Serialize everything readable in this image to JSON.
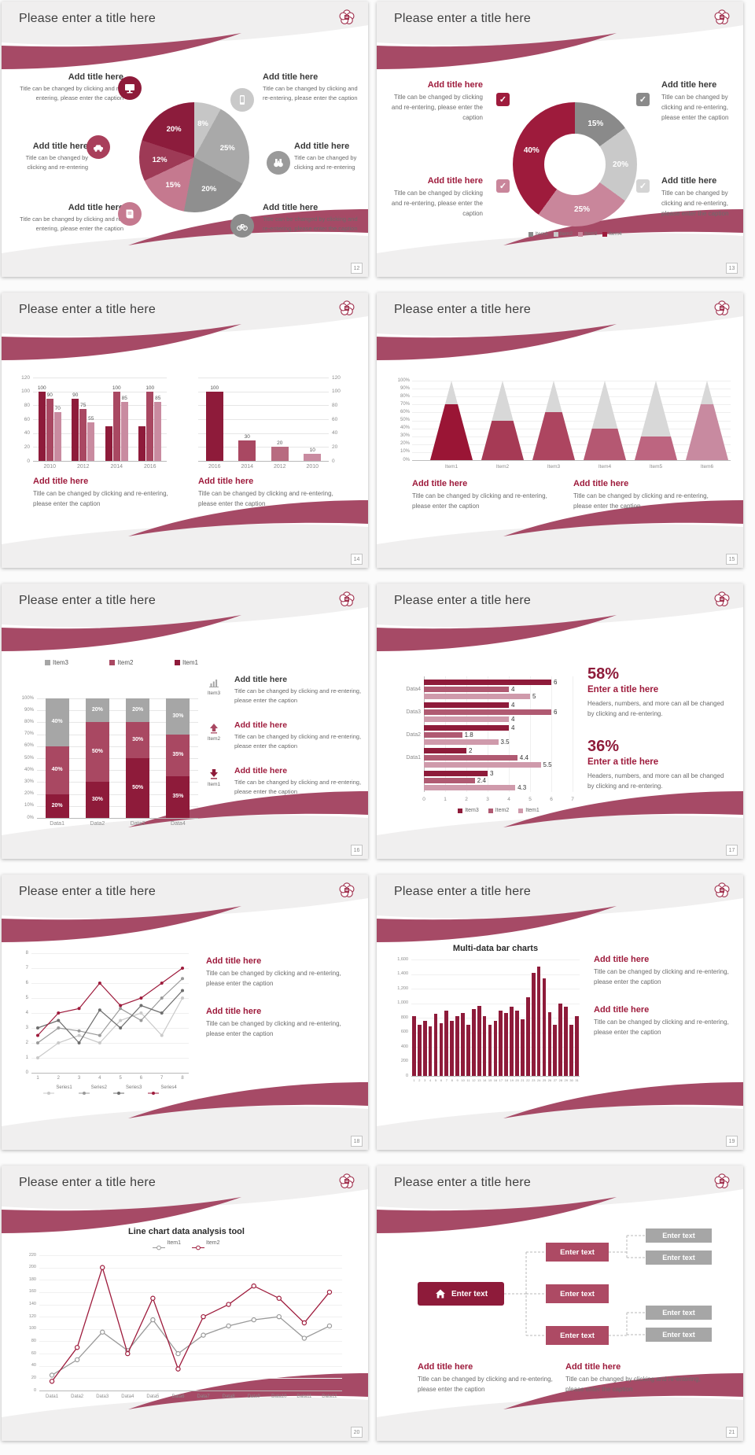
{
  "shared": {
    "slide_title": "Please enter a title here",
    "add_title": "Add title here",
    "caption": "Title can be changed by clicking and re-entering, please enter the caption",
    "caption_short": "Title can be changed by clicking and re-entering",
    "colors": {
      "primary": "#8E1B3A",
      "mid": "#A94862",
      "rose": "#C5798F",
      "light_rose": "#C98BA0",
      "ribbon": "#A64A66",
      "band": "#F0EFEF",
      "title_text": "#3F3F3F",
      "add_title_text": "#9E1B3C",
      "caption_text": "#6B6B6B",
      "gray_dark": "#8A8A8A",
      "gray_mid": "#A9A9A9",
      "gray_light": "#C6C6C6",
      "axis_text": "#8C8C8C",
      "grid_line": "#E6E6E6"
    }
  },
  "slides": [
    {
      "page": "12",
      "type": "pie_callouts",
      "chart_data": {
        "type": "pie",
        "slices": [
          {
            "label": "8%",
            "value": 8,
            "color": "#C6C6C6"
          },
          {
            "label": "25%",
            "value": 25,
            "color": "#A9A9A9"
          },
          {
            "label": "20%",
            "value": 20,
            "color": "#8F8F8F"
          },
          {
            "label": "15%",
            "value": 15,
            "color": "#C5798F"
          },
          {
            "label": "12%",
            "value": 12,
            "color": "#9E3A56"
          },
          {
            "label": "20%",
            "value": 20,
            "color": "#8C1C3C"
          }
        ]
      },
      "callouts": [
        {
          "side": "left",
          "icon": "monitor-icon",
          "icon_color": "#8E1B3A",
          "title": "Add title here",
          "caption": "Title can be changed by clicking and re-entering, please enter the caption"
        },
        {
          "side": "left",
          "icon": "car-icon",
          "icon_color": "#A93F5B",
          "title": "Add title here",
          "caption": "Title can be changed by clicking and re-entering"
        },
        {
          "side": "left",
          "icon": "book-icon",
          "icon_color": "#C5798F",
          "title": "Add title here",
          "caption": "Title can be changed by clicking and re-entering, please enter the caption"
        },
        {
          "side": "right",
          "icon": "smartphone-icon",
          "icon_color": "#C9C9C9",
          "title": "Add title here",
          "caption": "Title can be changed by clicking and re-entering, please enter the caption"
        },
        {
          "side": "right",
          "icon": "binoculars-icon",
          "icon_color": "#9A9A9A",
          "title": "Add title here",
          "caption": "Title can be changed by clicking and re-entering"
        },
        {
          "side": "right",
          "icon": "bicycle-icon",
          "icon_color": "#8C8C8C",
          "title": "Add title here",
          "caption": "Title can be changed by clicking and re-entering, please enter the caption"
        }
      ]
    },
    {
      "page": "13",
      "type": "donut_checks",
      "chart_data": {
        "type": "donut",
        "slices": [
          {
            "label": "15%",
            "value": 15,
            "color": "#8A8A8A"
          },
          {
            "label": "20%",
            "value": 20,
            "color": "#C9C9C9"
          },
          {
            "label": "25%",
            "value": 25,
            "color": "#C9869B"
          },
          {
            "label": "40%",
            "value": 40,
            "color": "#9E1B3C"
          }
        ],
        "legend": [
          {
            "label": "Item1",
            "color": "#8A8A8A"
          },
          {
            "label": "Item2",
            "color": "#C9C9C9"
          },
          {
            "label": "Item3",
            "color": "#C9869B"
          },
          {
            "label": "Item4",
            "color": "#9E1B3C"
          }
        ]
      },
      "callouts": [
        {
          "side": "left",
          "check_color": "#9E1B3C",
          "title": "Add title here",
          "title_color": "#9E1B3C",
          "caption": "Title can be changed by clicking and re-entering, please enter the caption"
        },
        {
          "side": "left",
          "check_color": "#C9869B",
          "title": "Add title here",
          "title_color": "#9E1B3C",
          "caption": "Title can be changed by clicking and re-entering, please enter the caption"
        },
        {
          "side": "right",
          "check_color": "#8A8A8A",
          "title": "Add title here",
          "title_color": "#3A3A3A",
          "caption": "Title can be changed by clicking and re-entering, please enter the caption"
        },
        {
          "side": "right",
          "check_color": "#D4D4D4",
          "title": "Add title here",
          "title_color": "#3A3A3A",
          "caption": "Title can be changed by clicking and re-entering, please enter the caption"
        }
      ]
    },
    {
      "page": "14",
      "type": "dual_bar",
      "chart_data": [
        {
          "type": "bar",
          "categories": [
            "2010",
            "2012",
            "2014",
            "2016"
          ],
          "series": [
            {
              "color": "#8E1B3A",
              "values": [
                100,
                90,
                50,
                50
              ],
              "labels": [
                "100",
                "90",
                "",
                ""
              ]
            },
            {
              "color": "#A94862",
              "values": [
                90,
                75,
                100,
                100
              ],
              "labels": [
                "90",
                "75",
                "100",
                "100"
              ]
            },
            {
              "color": "#C98BA0",
              "values": [
                70,
                55,
                85,
                85
              ],
              "labels": [
                "70",
                "55",
                "85",
                "85"
              ]
            }
          ],
          "ylim": [
            0,
            120
          ],
          "ytick": 20,
          "yaxis": "left"
        },
        {
          "type": "bar",
          "categories": [
            "2016",
            "2014",
            "2012",
            "2010"
          ],
          "values": [
            100,
            30,
            20,
            10
          ],
          "labels": [
            "100",
            "30",
            "20",
            "10"
          ],
          "bar_colors": [
            "#8E1B3A",
            "#A94862",
            "#B86B80",
            "#C98BA0"
          ],
          "ylim": [
            0,
            120
          ],
          "ytick": 20,
          "yaxis": "right"
        }
      ],
      "blocks": [
        {
          "title": "Add title here",
          "caption": "Title can be changed by clicking and re-entering, please enter the caption"
        },
        {
          "title": "Add title here",
          "caption": "Title can be changed by clicking and re-entering, please enter the caption"
        }
      ]
    },
    {
      "page": "15",
      "type": "cones",
      "chart_data": {
        "type": "cone_bar",
        "categories": [
          "Item1",
          "Item2",
          "Item3",
          "Item4",
          "Item5",
          "Item6"
        ],
        "values_pct": [
          70,
          50,
          60,
          40,
          30,
          70
        ],
        "colors": [
          "#9A1535",
          "#A63A55",
          "#AD4560",
          "#B55872",
          "#BD6580",
          "#C88AA0"
        ],
        "cone_back_color": "#D8D8D8",
        "yticks": [
          "0%",
          "10%",
          "20%",
          "30%",
          "40%",
          "50%",
          "60%",
          "70%",
          "80%",
          "90%",
          "100%"
        ]
      },
      "blocks": [
        {
          "title": "Add title here",
          "caption": "Title can be changed by clicking and re-entering, please enter the caption"
        },
        {
          "title": "Add title here",
          "caption": "Title can be changed by clicking and re-entering, please enter the caption"
        }
      ]
    },
    {
      "page": "16",
      "type": "stacked",
      "chart_data": {
        "type": "stacked_bar",
        "categories": [
          "Data1",
          "Data2",
          "Data3",
          "Data4"
        ],
        "series": [
          {
            "name": "Item1",
            "color": "#8E1B3A",
            "values": [
              20,
              30,
              50,
              35
            ]
          },
          {
            "name": "Item2",
            "color": "#A94862",
            "values": [
              40,
              50,
              30,
              35
            ]
          },
          {
            "name": "Item3",
            "color": "#A6A6A6",
            "values": [
              40,
              20,
              20,
              30
            ]
          }
        ],
        "legend_order": [
          "Item3",
          "Item2",
          "Item1"
        ],
        "yticks": [
          "0%",
          "10%",
          "20%",
          "30%",
          "40%",
          "50%",
          "60%",
          "70%",
          "80%",
          "90%",
          "100%"
        ]
      },
      "features": [
        {
          "icon": "bar-chart-icon",
          "icon_color": "#A6A6A6",
          "label": "Item3",
          "title": "Add title here",
          "title_color": "#3A3A3A",
          "caption": "Title can be changed by clicking and re-entering, please enter the caption"
        },
        {
          "icon": "arrow-up-icon",
          "icon_color": "#A94862",
          "label": "Item2",
          "title": "Add title here",
          "title_color": "#9E1B3C",
          "caption": "Title can be changed by clicking and re-entering, please enter the caption"
        },
        {
          "icon": "arrow-down-icon",
          "icon_color": "#8E1B3A",
          "label": "Item1",
          "title": "Add title here",
          "title_color": "#9E1B3C",
          "caption": "Title can be changed by clicking and re-entering, please enter the caption"
        }
      ]
    },
    {
      "page": "17",
      "type": "hbars",
      "chart_data": {
        "type": "bar-horizontal",
        "groups": [
          {
            "label": "Data4",
            "values": [
              6,
              4,
              5
            ]
          },
          {
            "label": "Data3",
            "values": [
              4,
              6,
              4
            ]
          },
          {
            "label": "Data2",
            "values": [
              4,
              1.8,
              3.5
            ]
          },
          {
            "label": "Data1",
            "values": [
              2,
              4.4,
              5.5
            ]
          },
          {
            "label": "",
            "values": [
              3,
              2.4,
              4.3
            ]
          }
        ],
        "series_colors": [
          "#8E1B3A",
          "#B05A72",
          "#CF9AAB"
        ],
        "xticks": [
          0,
          1,
          2,
          3,
          4,
          5,
          6,
          7
        ],
        "legend": [
          {
            "label": "Item3",
            "color": "#8E1B3A"
          },
          {
            "label": "Item2",
            "color": "#B05A72"
          },
          {
            "label": "Item1",
            "color": "#CF9AAB"
          }
        ]
      },
      "stats": [
        {
          "pct": "58%",
          "title": "Enter a title here",
          "caption": "Headers, numbers, and more can all be changed by clicking and re-entering."
        },
        {
          "pct": "36%",
          "title": "Enter a title here",
          "caption": "Headers, numbers, and more can all be changed by clicking and re-entering."
        }
      ]
    },
    {
      "page": "18",
      "type": "lines",
      "chart_data": {
        "type": "line",
        "x": [
          1,
          2,
          3,
          4,
          5,
          6,
          7,
          8
        ],
        "ylim": [
          0,
          8
        ],
        "series": [
          {
            "name": "Series1",
            "color": "#C9C9C9",
            "values": [
              1,
              2,
              2.5,
              2,
              3.5,
              4,
              2.5,
              5
            ]
          },
          {
            "name": "Series2",
            "color": "#9A9A9A",
            "values": [
              2,
              3,
              2.8,
              2.5,
              4.3,
              3.5,
              5,
              6.3
            ]
          },
          {
            "name": "Series3",
            "color": "#6E6E6E",
            "values": [
              3,
              3.5,
              2,
              4.2,
              3,
              4.5,
              4,
              5.5
            ]
          },
          {
            "name": "Series4",
            "color": "#9E1B3C",
            "values": [
              2.5,
              4,
              4.3,
              6,
              4.5,
              5,
              6,
              7
            ]
          }
        ]
      },
      "blocks": [
        {
          "title": "Add title here",
          "caption": "Title can be changed by clicking and re-entering, please enter the caption"
        },
        {
          "title": "Add title here",
          "caption": "Title can be changed by clicking and re-entering, please enter the caption"
        }
      ]
    },
    {
      "page": "19",
      "type": "multibar",
      "chart_data": {
        "type": "bar",
        "title": "Multi-data bar charts",
        "x": [
          "1",
          "2",
          "3",
          "4",
          "5",
          "6",
          "7",
          "8",
          "9",
          "10",
          "11",
          "12",
          "13",
          "14",
          "15",
          "16",
          "17",
          "18",
          "19",
          "20",
          "21",
          "22",
          "23",
          "24",
          "25",
          "26",
          "27",
          "28",
          "29",
          "30",
          "31"
        ],
        "values": [
          820,
          700,
          760,
          680,
          850,
          720,
          900,
          760,
          820,
          860,
          700,
          920,
          960,
          820,
          700,
          760,
          900,
          860,
          950,
          900,
          780,
          1080,
          1420,
          1500,
          1340,
          880,
          700,
          1000,
          950,
          700,
          820
        ],
        "color": "#8E1B3A",
        "yticks": [
          "0",
          "200",
          "400",
          "600",
          "800",
          "1,000",
          "1,200",
          "1,400",
          "1,600"
        ],
        "ylim": [
          0,
          1600
        ]
      },
      "blocks": [
        {
          "title": "Add title here",
          "caption": "Title can be changed by clicking and re-entering, please enter the caption"
        },
        {
          "title": "Add title here",
          "caption": "Title can be changed by clicking and re-entering, please enter the caption"
        }
      ]
    },
    {
      "page": "20",
      "type": "linetool",
      "chart_data": {
        "type": "line",
        "title": "Line chart data analysis tool",
        "categories": [
          "Data1",
          "Data2",
          "Data3",
          "Data4",
          "Data5",
          "Data6",
          "Data7",
          "Data8",
          "Data9",
          "Data10",
          "Data11",
          "Data12"
        ],
        "ylim": [
          0,
          220
        ],
        "ytick": 20,
        "series": [
          {
            "name": "Item1",
            "color": "#9A9A9A",
            "values": [
              25,
              50,
              95,
              65,
              115,
              60,
              90,
              105,
              115,
              120,
              85,
              105
            ]
          },
          {
            "name": "Item2",
            "color": "#9E1B3C",
            "values": [
              15,
              70,
              200,
              60,
              150,
              35,
              120,
              140,
              170,
              150,
              110,
              160
            ]
          }
        ]
      }
    },
    {
      "page": "21",
      "type": "diagram",
      "diagram": {
        "home": {
          "label": "Enter text",
          "icon": "home-icon",
          "color": "#8E1B3A"
        },
        "mid": {
          "color": "#AD4A64",
          "items": [
            "Enter text",
            "Enter text",
            "Enter text"
          ]
        },
        "right": {
          "color": "#A6A6A6",
          "items": [
            "Enter text",
            "Enter text",
            "Enter text",
            "Enter text"
          ]
        }
      },
      "blocks": [
        {
          "title": "Add title here",
          "caption": "Title can be changed by clicking and re-entering, please enter the caption"
        },
        {
          "title": "Add title here",
          "caption": "Title can be changed by clicking and re-entering, please enter the caption"
        }
      ]
    }
  ]
}
